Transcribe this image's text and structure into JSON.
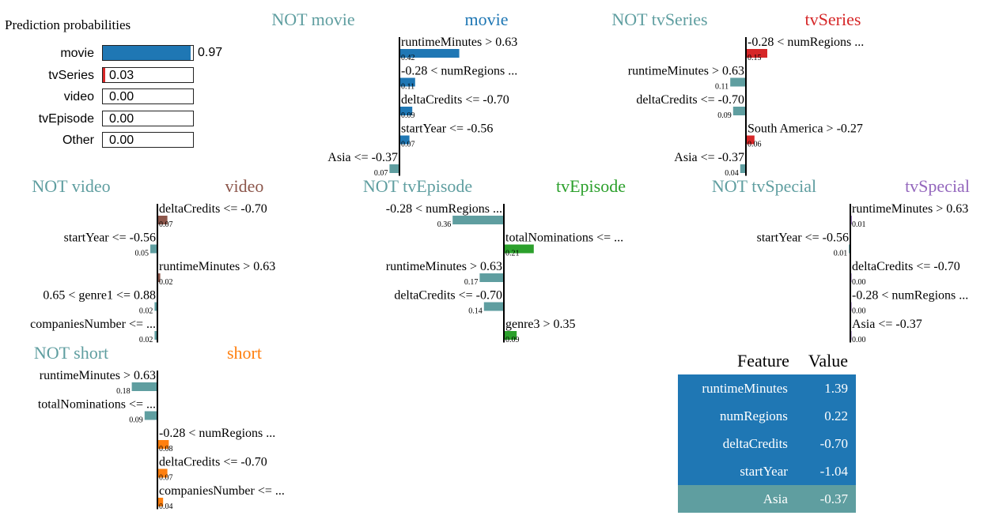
{
  "prediction_probabilities": {
    "title": "Prediction probabilities",
    "items": [
      {
        "label": "movie",
        "value": 0.97,
        "text": "0.97",
        "color": "#1f77b4"
      },
      {
        "label": "tvSeries",
        "value": 0.03,
        "text": "0.03",
        "color": "#d62728"
      },
      {
        "label": "video",
        "value": 0.0,
        "text": "0.00",
        "color": "#8c564b"
      },
      {
        "label": "tvEpisode",
        "value": 0.0,
        "text": "0.00",
        "color": "#2ca02c"
      },
      {
        "label": "Other",
        "value": 0.0,
        "text": "0.00",
        "color": "#9467bd"
      }
    ]
  },
  "chart_data": [
    {
      "type": "bar",
      "neg_title": "NOT movie",
      "pos_title": "movie",
      "pos_color": "#1f77b4",
      "neg_color": "#5f9ea0",
      "bars": [
        {
          "feature": "runtimeMinutes > 0.63",
          "value": 0.42,
          "label": "0.42"
        },
        {
          "feature": "-0.28 < numRegions ...",
          "value": 0.11,
          "label": "0.11"
        },
        {
          "feature": "deltaCredits <= -0.70",
          "value": 0.09,
          "label": "0.09"
        },
        {
          "feature": "startYear <= -0.56",
          "value": 0.07,
          "label": "0.07"
        },
        {
          "feature": "Asia <= -0.37",
          "value": -0.07,
          "label": "0.07"
        }
      ]
    },
    {
      "type": "bar",
      "neg_title": "NOT tvSeries",
      "pos_title": "tvSeries",
      "pos_color": "#d62728",
      "neg_color": "#5f9ea0",
      "bars": [
        {
          "feature": "-0.28 < numRegions ...",
          "value": 0.15,
          "label": "0.15"
        },
        {
          "feature": "runtimeMinutes > 0.63",
          "value": -0.11,
          "label": "0.11"
        },
        {
          "feature": "deltaCredits <= -0.70",
          "value": -0.09,
          "label": "0.09"
        },
        {
          "feature": "South America > -0.27",
          "value": 0.06,
          "label": "0.06"
        },
        {
          "feature": "Asia <= -0.37",
          "value": -0.04,
          "label": "0.04"
        }
      ]
    },
    {
      "type": "bar",
      "neg_title": "NOT video",
      "pos_title": "video",
      "pos_color": "#8c564b",
      "neg_color": "#5f9ea0",
      "bars": [
        {
          "feature": "deltaCredits <= -0.70",
          "value": 0.07,
          "label": "0.07"
        },
        {
          "feature": "startYear <= -0.56",
          "value": -0.05,
          "label": "0.05"
        },
        {
          "feature": "runtimeMinutes > 0.63",
          "value": 0.02,
          "label": "0.02"
        },
        {
          "feature": "0.65 < genre1 <= 0.88",
          "value": -0.02,
          "label": "0.02"
        },
        {
          "feature": "companiesNumber <= ...",
          "value": -0.02,
          "label": "0.02"
        }
      ]
    },
    {
      "type": "bar",
      "neg_title": "NOT tvEpisode",
      "pos_title": "tvEpisode",
      "pos_color": "#2ca02c",
      "neg_color": "#5f9ea0",
      "bars": [
        {
          "feature": "-0.28 < numRegions ...",
          "value": -0.36,
          "label": "0.36"
        },
        {
          "feature": "totalNominations <= ...",
          "value": 0.21,
          "label": "0.21"
        },
        {
          "feature": "runtimeMinutes > 0.63",
          "value": -0.17,
          "label": "0.17"
        },
        {
          "feature": "deltaCredits <= -0.70",
          "value": -0.14,
          "label": "0.14"
        },
        {
          "feature": "genre3 > 0.35",
          "value": 0.09,
          "label": "0.09"
        }
      ]
    },
    {
      "type": "bar",
      "neg_title": "NOT tvSpecial",
      "pos_title": "tvSpecial",
      "pos_color": "#9467bd",
      "neg_color": "#5f9ea0",
      "bars": [
        {
          "feature": "runtimeMinutes > 0.63",
          "value": 0.01,
          "label": "0.01"
        },
        {
          "feature": "startYear <= -0.56",
          "value": -0.01,
          "label": "0.01"
        },
        {
          "feature": "deltaCredits <= -0.70",
          "value": 0.0,
          "label": "0.00"
        },
        {
          "feature": "-0.28 < numRegions ...",
          "value": 0.0,
          "label": "0.00"
        },
        {
          "feature": "Asia <= -0.37",
          "value": 0.0,
          "label": "0.00"
        }
      ]
    },
    {
      "type": "bar",
      "neg_title": "NOT short",
      "pos_title": "short",
      "pos_color": "#ff7f0e",
      "neg_color": "#5f9ea0",
      "bars": [
        {
          "feature": "runtimeMinutes > 0.63",
          "value": -0.18,
          "label": "0.18"
        },
        {
          "feature": "totalNominations <= ...",
          "value": -0.09,
          "label": "0.09"
        },
        {
          "feature": "-0.28 < numRegions ...",
          "value": 0.08,
          "label": "0.08"
        },
        {
          "feature": "deltaCredits <= -0.70",
          "value": 0.07,
          "label": "0.07"
        },
        {
          "feature": "companiesNumber <= ...",
          "value": 0.04,
          "label": "0.04"
        }
      ]
    }
  ],
  "feature_table": {
    "headers": [
      "Feature",
      "Value"
    ],
    "rows": [
      {
        "feature": "runtimeMinutes",
        "value": "1.39",
        "color": "#1f77b4"
      },
      {
        "feature": "numRegions",
        "value": "0.22",
        "color": "#1f77b4"
      },
      {
        "feature": "deltaCredits",
        "value": "-0.70",
        "color": "#1f77b4"
      },
      {
        "feature": "startYear",
        "value": "-1.04",
        "color": "#1f77b4"
      },
      {
        "feature": "Asia",
        "value": "-0.37",
        "color": "#5f9ea0"
      }
    ]
  }
}
